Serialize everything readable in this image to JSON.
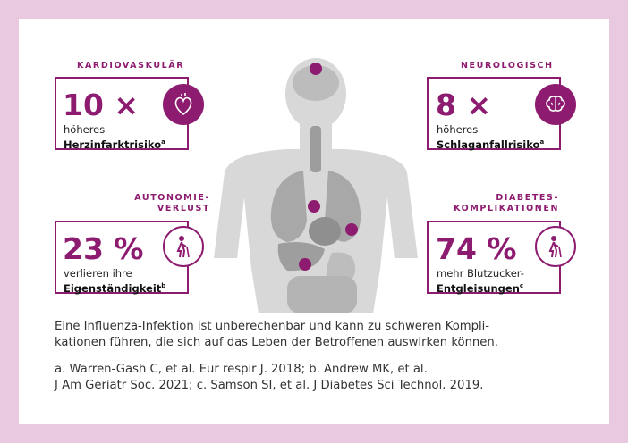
{
  "stats": [
    {
      "category": "KARDIOVASKULÄR",
      "value": "10 ×",
      "line1": "höheres",
      "line2": "Herzinfarktrisiko",
      "sup": "a",
      "icon": "heart-icon"
    },
    {
      "category": "NEUROLOGISCH",
      "value": "8 ×",
      "line1": "höheres",
      "line2": "Schlaganfallrisiko",
      "sup": "a",
      "icon": "brain-icon"
    },
    {
      "category_line1": "AUTONOMIE-",
      "category_line2": "VERLUST",
      "value": "23 %",
      "line1": "verlieren ihre",
      "line2": "Eigenständigkeit",
      "sup": "b",
      "icon": "elderly-person-icon"
    },
    {
      "category_line1": "DIABETES-",
      "category_line2": "KOMPLIKATIONEN",
      "value": "74 %",
      "line1": "mehr Blutzucker-",
      "line2": "Entgleisungen",
      "sup": "c",
      "icon": "elderly-person-icon"
    }
  ],
  "description_line1": "Eine Influenza-Infektion ist unberechenbar und kann zu schweren Kompli-",
  "description_line2": "kationen führen, die sich auf das Leben der Betroffenen auswirken können.",
  "references_line1": "a. Warren-Gash C, et al. Eur respir J. 2018; b. Andrew MK, et al.",
  "references_line2": "J Am Geriatr Soc. 2021; c. Samson SI, et al. J Diabetes Sci Technol. 2019.",
  "colors": {
    "accent": "#8d1b6f",
    "frame": "#e9c9df",
    "silhouette": "#d6d6d6"
  }
}
